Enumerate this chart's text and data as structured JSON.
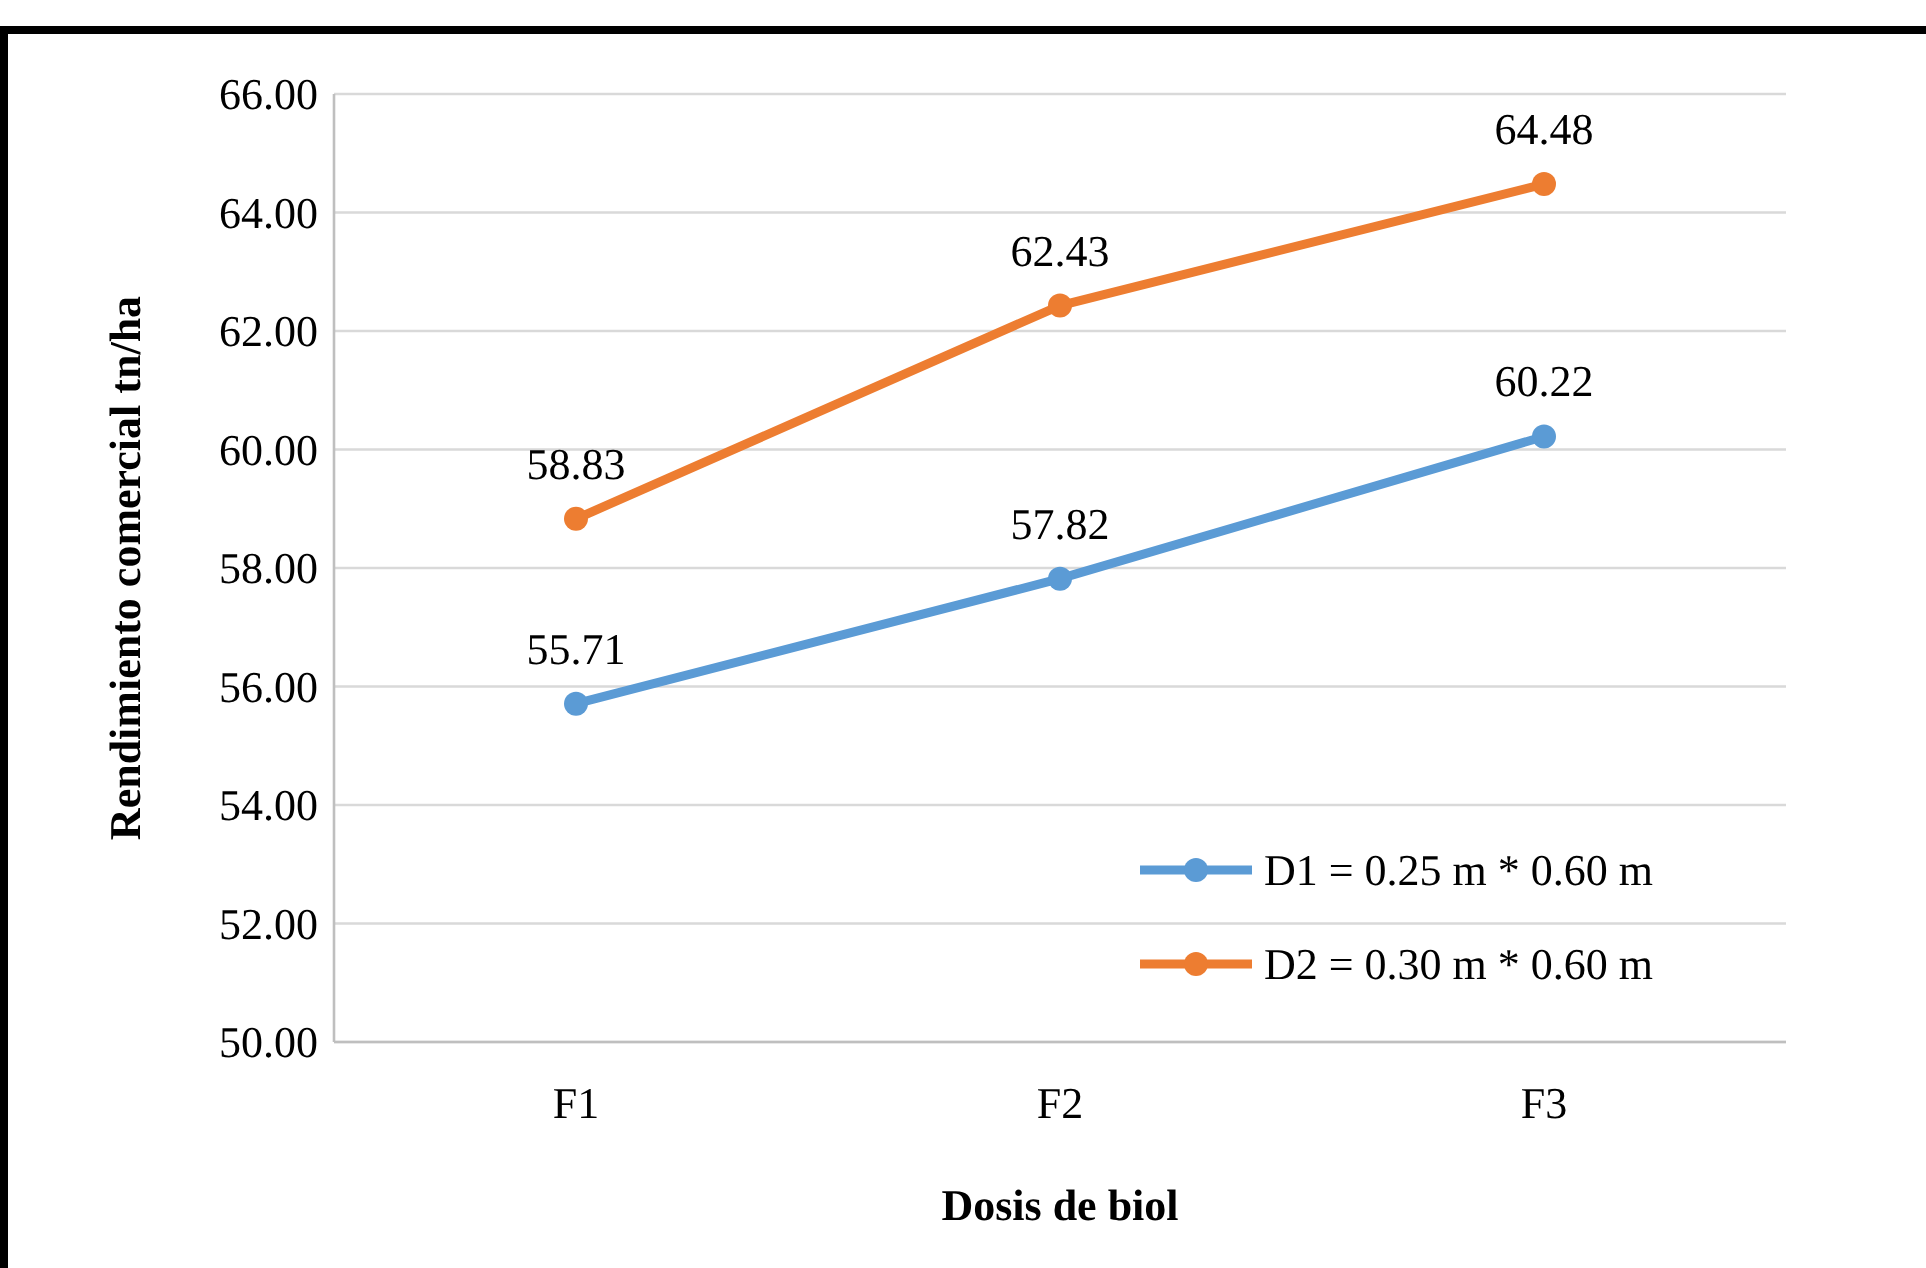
{
  "chart_data": {
    "type": "line",
    "xlabel": "Dosis de biol",
    "ylabel": "Rendimiento comercial tn/ha",
    "categories": [
      "F1",
      "F2",
      "F3"
    ],
    "series": [
      {
        "name": "D1 = 0.25 m * 0.60 m",
        "color": "#5b9bd5",
        "values": [
          55.71,
          57.82,
          60.22
        ]
      },
      {
        "name": "D2 = 0.30 m * 0.60 m",
        "color": "#ed7d31",
        "values": [
          58.83,
          62.43,
          64.48
        ]
      }
    ],
    "ylim": [
      50,
      66
    ],
    "yticks": [
      {
        "value": 50,
        "label": "50.00"
      },
      {
        "value": 52,
        "label": "52.00"
      },
      {
        "value": 54,
        "label": "54.00"
      },
      {
        "value": 56,
        "label": "56.00"
      },
      {
        "value": 58,
        "label": "58.00"
      },
      {
        "value": 60,
        "label": "60.00"
      },
      {
        "value": 62,
        "label": "62.00"
      },
      {
        "value": 64,
        "label": "64.00"
      },
      {
        "value": 66,
        "label": "66.00"
      }
    ],
    "grid": "y",
    "legend": "bottom right",
    "marker": "circle",
    "line_style": "solid",
    "data_labels": true
  }
}
